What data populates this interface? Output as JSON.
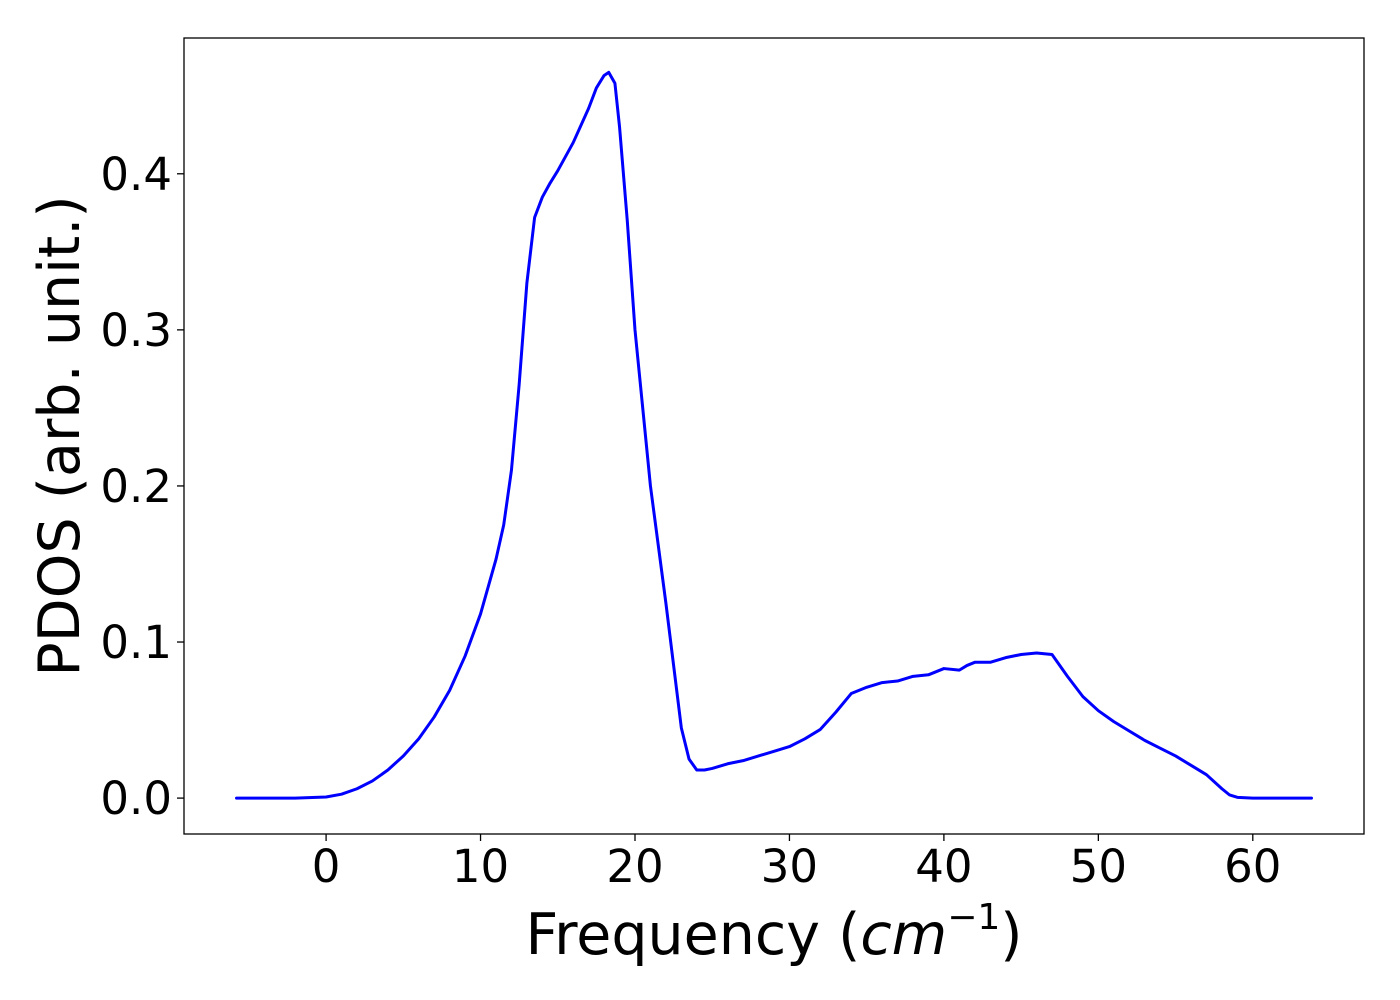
{
  "chart_data": {
    "type": "line",
    "title": "",
    "xlabel": "Frequency",
    "xlabel_unit": "cm",
    "xlabel_unit_exponent": "−1",
    "ylabel": "PDOS (arb. unit.)",
    "xlim": [
      -9.2,
      67.2
    ],
    "ylim": [
      -0.023,
      0.487
    ],
    "x_ticks": [
      0,
      10,
      20,
      30,
      40,
      50,
      60
    ],
    "x_tick_labels": [
      "0",
      "10",
      "20",
      "30",
      "40",
      "50",
      "60"
    ],
    "y_ticks": [
      0.0,
      0.1,
      0.2,
      0.3,
      0.4
    ],
    "y_tick_labels": [
      "0.0",
      "0.1",
      "0.2",
      "0.3",
      "0.4"
    ],
    "grid": false,
    "legend": "none",
    "line_color": "#0000ff",
    "series": [
      {
        "x": [
          -5.8,
          -2,
          0,
          1,
          2,
          3,
          4,
          5,
          6,
          7,
          8,
          9,
          10,
          11,
          11.5,
          12,
          12.5,
          13,
          13.5,
          14,
          14.5,
          15,
          16,
          17,
          17.5,
          18,
          18.3,
          18.7,
          19,
          19.5,
          20,
          21,
          22,
          22.5,
          23,
          23.5,
          24,
          24.5,
          25,
          26,
          27,
          28,
          29,
          30,
          31,
          32,
          33,
          34,
          35,
          36,
          37,
          38,
          39,
          40,
          41,
          41.5,
          42,
          43,
          44,
          45,
          46,
          47,
          48,
          49,
          50,
          51,
          52,
          53,
          54,
          55,
          56,
          57,
          58,
          58.5,
          59,
          60,
          62,
          63.8
        ],
        "values": [
          0.0,
          0.0,
          0.0007,
          0.0025,
          0.006,
          0.011,
          0.018,
          0.027,
          0.038,
          0.052,
          0.069,
          0.091,
          0.118,
          0.153,
          0.175,
          0.21,
          0.265,
          0.33,
          0.372,
          0.385,
          0.394,
          0.402,
          0.42,
          0.442,
          0.455,
          0.463,
          0.465,
          0.458,
          0.43,
          0.37,
          0.3,
          0.2,
          0.125,
          0.085,
          0.045,
          0.025,
          0.018,
          0.018,
          0.019,
          0.022,
          0.024,
          0.027,
          0.03,
          0.033,
          0.038,
          0.044,
          0.055,
          0.067,
          0.071,
          0.074,
          0.075,
          0.078,
          0.079,
          0.083,
          0.082,
          0.085,
          0.087,
          0.087,
          0.09,
          0.092,
          0.093,
          0.092,
          0.078,
          0.065,
          0.056,
          0.049,
          0.043,
          0.037,
          0.032,
          0.027,
          0.021,
          0.015,
          0.006,
          0.002,
          0.0005,
          0.0,
          0.0,
          0.0
        ]
      }
    ]
  }
}
